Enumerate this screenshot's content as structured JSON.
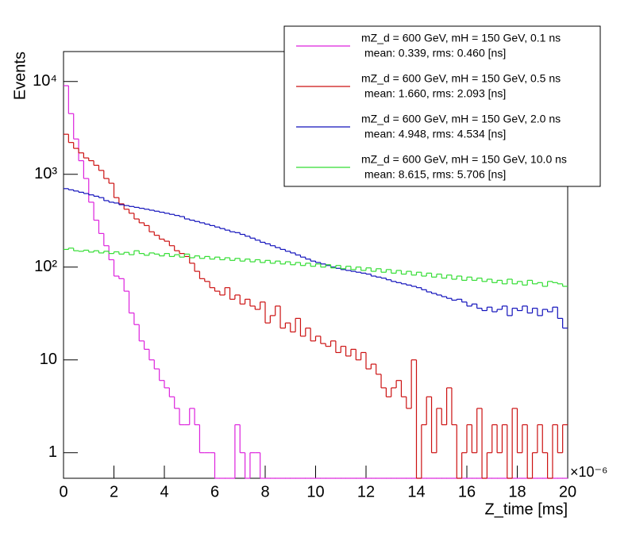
{
  "chart_data": {
    "type": "histogram",
    "xlabel": "Z_time [ms]",
    "ylabel": "Events",
    "x_multiplier": "×10⁻⁶",
    "xlim": [
      0,
      20
    ],
    "ylim": [
      0.53,
      21000
    ],
    "log_y": true,
    "grid": false,
    "xticks": [
      0,
      2,
      4,
      6,
      8,
      10,
      12,
      14,
      16,
      18,
      20
    ],
    "yticks": [
      1,
      10,
      {
        "value": 100,
        "label": "10²"
      },
      {
        "value": 1000,
        "label": "10³"
      },
      {
        "value": 10000,
        "label": "10⁴"
      }
    ],
    "legend_position": "upper right",
    "bins": [
      0,
      0.2,
      0.4,
      0.6,
      0.8,
      1,
      1.2,
      1.4,
      1.6,
      1.8,
      2,
      2.2,
      2.4,
      2.6,
      2.8,
      3,
      3.2,
      3.4,
      3.6,
      3.8,
      4,
      4.2,
      4.4,
      4.6,
      4.8,
      5,
      5.2,
      5.4,
      5.6,
      5.8,
      6,
      6.2,
      6.4,
      6.6,
      6.8,
      7,
      7.2,
      7.4,
      7.6,
      7.8,
      8,
      8.2,
      8.4,
      8.6,
      8.8,
      9,
      9.2,
      9.4,
      9.6,
      9.8,
      10,
      10.2,
      10.4,
      10.6,
      10.8,
      11,
      11.2,
      11.4,
      11.6,
      11.8,
      12,
      12.2,
      12.4,
      12.6,
      12.8,
      13,
      13.2,
      13.4,
      13.6,
      13.8,
      14,
      14.2,
      14.4,
      14.6,
      14.8,
      15,
      15.2,
      15.4,
      15.6,
      15.8,
      16,
      16.2,
      16.4,
      16.6,
      16.8,
      17,
      17.2,
      17.4,
      17.6,
      17.8,
      18,
      18.2,
      18.4,
      18.6,
      18.8,
      19,
      19.2,
      19.4,
      19.6,
      19.8,
      20
    ],
    "series": [
      {
        "name": "mZ_d = 600 GeV, mH = 150 GeV, 0.1 ns",
        "stats": "mean: 0.339, rms: 0.460 [ns]",
        "color": "#dd22dd",
        "values": [
          9000,
          4500,
          2400,
          1400,
          900,
          500,
          320,
          230,
          170,
          120,
          80,
          75,
          55,
          32,
          24,
          16,
          13,
          10,
          8,
          6,
          5,
          4,
          3,
          2,
          2,
          3,
          2,
          1,
          1,
          1,
          0,
          0,
          0,
          0,
          2,
          1,
          0,
          1,
          1,
          0,
          0,
          0,
          0,
          0,
          0,
          0,
          0,
          0,
          0,
          0,
          0,
          0,
          0,
          0,
          0,
          0,
          0,
          0,
          0,
          0,
          0,
          0,
          0,
          0,
          0,
          0,
          0,
          0,
          0,
          0,
          0,
          0,
          0,
          0,
          0,
          0,
          0,
          0,
          0,
          0,
          0,
          0,
          0,
          0,
          0,
          0,
          0,
          0,
          0,
          0,
          0,
          0,
          0,
          0,
          0,
          0,
          0,
          0,
          0,
          0
        ]
      },
      {
        "name": "mZ_d = 600 GeV, mH = 150 GeV, 0.5 ns",
        "stats": "mean: 1.660, rms: 2.093 [ns]",
        "color": "#cc1111",
        "values": [
          2700,
          2200,
          1900,
          1700,
          1500,
          1400,
          1250,
          1100,
          900,
          800,
          560,
          480,
          420,
          380,
          330,
          300,
          280,
          240,
          220,
          200,
          190,
          170,
          150,
          140,
          130,
          110,
          90,
          75,
          70,
          60,
          55,
          50,
          60,
          45,
          50,
          40,
          45,
          38,
          35,
          42,
          25,
          30,
          38,
          22,
          25,
          20,
          28,
          18,
          22,
          16,
          18,
          15,
          14,
          16,
          12,
          14,
          11,
          13,
          10,
          12,
          8,
          9,
          7,
          5,
          4,
          5,
          6,
          4,
          3,
          10,
          0,
          2,
          4,
          1,
          3,
          2,
          5,
          2,
          0,
          1,
          2,
          1,
          3,
          0,
          1,
          2,
          1,
          2,
          0,
          3,
          1,
          2,
          0,
          1,
          2,
          1,
          0,
          2,
          1,
          2
        ]
      },
      {
        "name": "mZ_d = 600 GeV, mH = 150 GeV, 2.0 ns",
        "stats": "mean: 4.948, rms: 4.534 [ns]",
        "color": "#1111bb",
        "values": [
          700,
          680,
          660,
          640,
          620,
          600,
          580,
          560,
          520,
          500,
          490,
          470,
          460,
          450,
          440,
          430,
          420,
          410,
          400,
          390,
          380,
          370,
          360,
          350,
          330,
          320,
          310,
          300,
          290,
          280,
          270,
          260,
          250,
          240,
          235,
          225,
          215,
          205,
          195,
          185,
          178,
          170,
          162,
          155,
          148,
          142,
          135,
          128,
          122,
          116,
          112,
          108,
          104,
          100,
          97,
          94,
          92,
          90,
          88,
          86,
          84,
          80,
          78,
          76,
          73,
          70,
          68,
          66,
          64,
          62,
          60,
          57,
          54,
          52,
          50,
          48,
          46,
          44,
          45,
          42,
          38,
          40,
          36,
          34,
          37,
          33,
          35,
          38,
          30,
          36,
          34,
          38,
          32,
          36,
          30,
          35,
          33,
          37,
          28,
          22
        ]
      },
      {
        "name": "mZ_d = 600 GeV, mH = 150 GeV, 10.0 ns",
        "stats": "mean: 8.615, rms: 5.706 [ns]",
        "color": "#33dd33",
        "values": [
          155,
          160,
          150,
          148,
          152,
          145,
          150,
          142,
          148,
          140,
          146,
          138,
          144,
          136,
          150,
          140,
          134,
          142,
          138,
          132,
          140,
          130,
          136,
          128,
          138,
          126,
          132,
          124,
          130,
          122,
          128,
          120,
          126,
          118,
          124,
          116,
          122,
          114,
          120,
          112,
          118,
          110,
          116,
          108,
          114,
          106,
          112,
          104,
          110,
          102,
          108,
          100,
          106,
          98,
          104,
          96,
          102,
          94,
          100,
          92,
          98,
          90,
          96,
          88,
          94,
          86,
          92,
          84,
          90,
          82,
          88,
          80,
          86,
          78,
          84,
          76,
          82,
          74,
          80,
          72,
          78,
          72,
          76,
          70,
          74,
          68,
          72,
          66,
          74,
          66,
          70,
          64,
          72,
          66,
          68,
          62,
          70,
          68,
          66,
          62
        ]
      }
    ]
  }
}
